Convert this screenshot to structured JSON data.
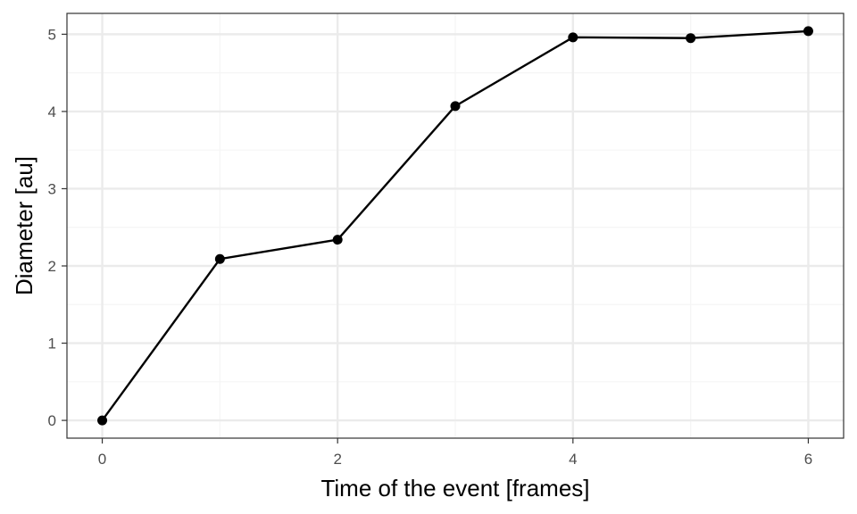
{
  "chart_data": {
    "type": "line",
    "title": "",
    "xlabel": "Time of the event [frames]",
    "ylabel": "Diameter [au]",
    "x": [
      0,
      1,
      2,
      3,
      4,
      5,
      6
    ],
    "series": [
      {
        "name": "Diameter",
        "values": [
          0.0,
          2.09,
          2.34,
          4.07,
          4.96,
          4.95,
          5.04
        ]
      }
    ],
    "xlim": [
      -0.3,
      6.3
    ],
    "ylim": [
      -0.23,
      5.27
    ],
    "xticks": [
      0,
      2,
      4,
      6
    ],
    "xtick_labels": [
      "0",
      "2",
      "4",
      "6"
    ],
    "yticks": [
      0,
      1,
      2,
      3,
      4,
      5
    ],
    "ytick_labels": [
      "0",
      "1",
      "2",
      "3",
      "4",
      "5"
    ],
    "x_minor_ticks": [
      1,
      3,
      5
    ],
    "y_minor_ticks": [
      0.5,
      1.5,
      2.5,
      3.5,
      4.5
    ],
    "grid": true,
    "legend": "none",
    "colors": {
      "line": "#000000",
      "point": "#000000",
      "grid_major": "#ebebeb",
      "grid_minor": "#f5f5f5",
      "panel_border": "#333333",
      "tick_text": "#4d4d4d"
    }
  }
}
